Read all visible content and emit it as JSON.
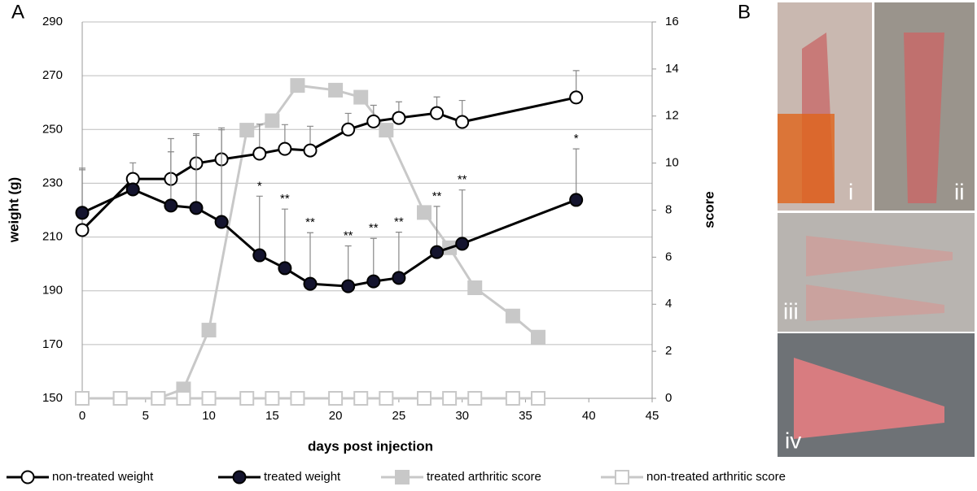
{
  "panels": {
    "chart_label": "A",
    "photo_label": "B",
    "photo_captions": [
      "i",
      "ii",
      "iii",
      "iv"
    ]
  },
  "chart_data": {
    "type": "line",
    "xlabel": "days post injection",
    "ylabel": "weight (g)",
    "y2label": "score",
    "xlim": [
      0,
      45
    ],
    "xticks": [
      0,
      5,
      10,
      15,
      20,
      25,
      30,
      35,
      40,
      45
    ],
    "ylim": [
      150,
      290
    ],
    "yticks": [
      150,
      170,
      190,
      210,
      230,
      250,
      270,
      290
    ],
    "y2lim": [
      0,
      16
    ],
    "y2ticks": [
      0,
      2,
      4,
      6,
      8,
      10,
      12,
      14,
      16
    ],
    "grid": true,
    "legend": "bottom",
    "series": [
      {
        "name": "non-treated weight",
        "color": "#000000",
        "marker": "open-circle",
        "x": [
          0,
          4,
          7,
          9,
          11,
          14,
          16,
          18,
          21,
          23,
          25,
          28,
          30,
          39
        ],
        "values": [
          212.6,
          231.6,
          231.6,
          237.4,
          238.9,
          241,
          242.8,
          242.2,
          250,
          253,
          254.3,
          256.1,
          252.8,
          261.9
        ],
        "errors": [
          23,
          6,
          15,
          11,
          11,
          11,
          9,
          9,
          6,
          6,
          6,
          6,
          8,
          10
        ]
      },
      {
        "name": "treated weight",
        "color": "#000000",
        "marker": "filled-circle",
        "x": [
          0,
          4,
          7,
          9,
          11,
          14,
          16,
          18,
          21,
          23,
          25,
          28,
          30,
          39
        ],
        "values": [
          219,
          227.7,
          221.7,
          220.8,
          215.6,
          203.2,
          198.4,
          192.6,
          191.7,
          193.5,
          194.8,
          204.4,
          207.5,
          223.8
        ],
        "errors": [
          16,
          1,
          20,
          27,
          35,
          22,
          22,
          19,
          15,
          16,
          17,
          17,
          20,
          19
        ]
      },
      {
        "name": "treated arthritic score",
        "color": "#c8c8c8",
        "marker": "filled-square",
        "axis": "y2",
        "x": [
          0,
          3,
          6,
          8,
          10,
          13,
          15,
          17,
          20,
          22,
          24,
          27,
          29,
          31,
          34,
          36
        ],
        "values": [
          0,
          0,
          0,
          0.4,
          2.9,
          11.4,
          11.8,
          13.3,
          13.1,
          12.8,
          11.4,
          7.9,
          6.4,
          4.7,
          3.5,
          2.6
        ]
      },
      {
        "name": "non-treated arthritic score",
        "color": "#c8c8c8",
        "marker": "open-square",
        "axis": "y2",
        "x": [
          0,
          3,
          6,
          8,
          10,
          13,
          15,
          17,
          20,
          22,
          24,
          27,
          29,
          31,
          34,
          36
        ],
        "values": [
          0,
          0,
          0,
          0,
          0,
          0,
          0,
          0,
          0,
          0,
          0,
          0,
          0,
          0,
          0,
          0
        ]
      }
    ],
    "annotations": [
      {
        "x": 14,
        "text": "*"
      },
      {
        "x": 16,
        "text": "**"
      },
      {
        "x": 18,
        "text": "**"
      },
      {
        "x": 21,
        "text": "**"
      },
      {
        "x": 23,
        "text": "**"
      },
      {
        "x": 25,
        "text": "**"
      },
      {
        "x": 28,
        "text": "**"
      },
      {
        "x": 30,
        "text": "**"
      },
      {
        "x": 39,
        "text": "*"
      }
    ]
  }
}
